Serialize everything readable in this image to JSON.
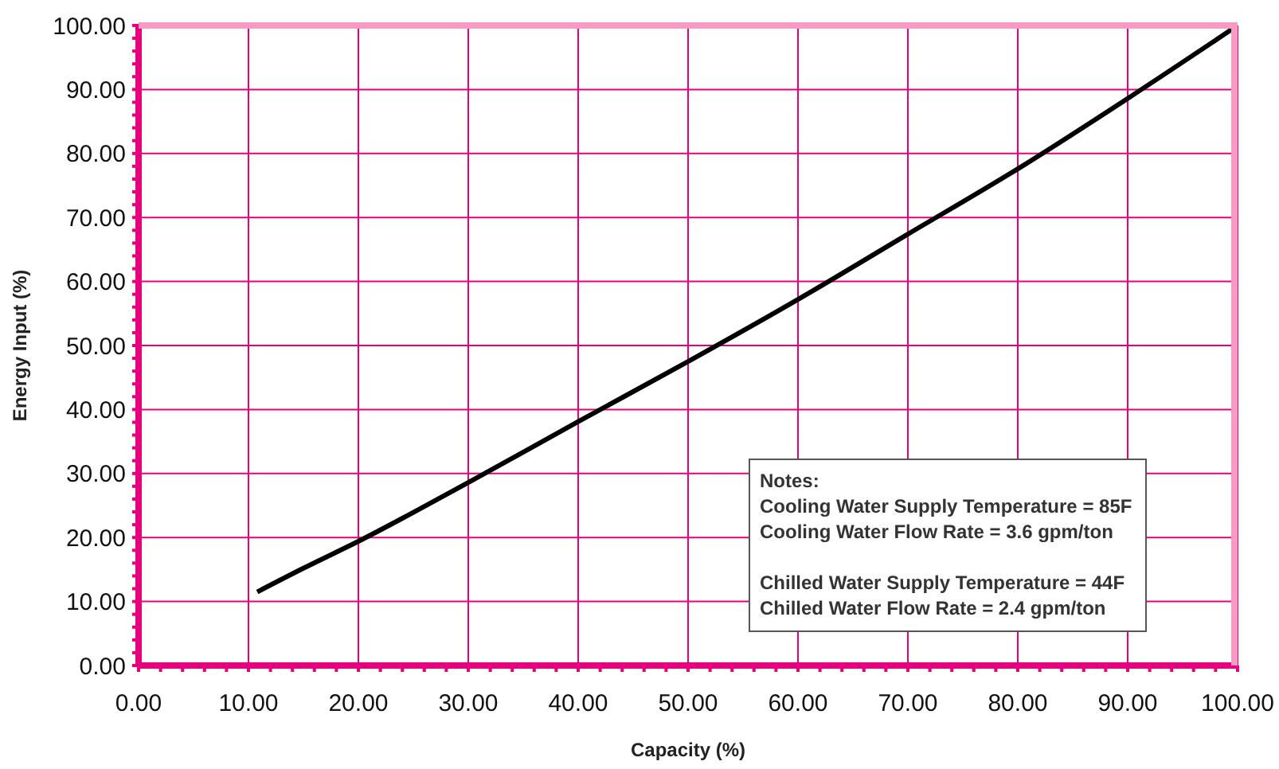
{
  "chart_data": {
    "type": "line",
    "xlabel": "Capacity (%)",
    "ylabel": "Energy Input (%)",
    "x": [
      10.8,
      15,
      20,
      30,
      40,
      50,
      60,
      70,
      80,
      90,
      100
    ],
    "series": [
      {
        "color": "#000000",
        "values": [
          11.5,
          15.2,
          19.4,
          28.6,
          38.1,
          47.5,
          57.2,
          67.4,
          77.6,
          88.6,
          100
        ]
      }
    ],
    "xlim": [
      0,
      100
    ],
    "ylim": [
      0,
      100
    ],
    "xticks": [
      {
        "value": 0,
        "label": "0.00"
      },
      {
        "value": 2,
        "label": null
      },
      {
        "value": 4,
        "label": null
      },
      {
        "value": 6,
        "label": null
      },
      {
        "value": 8,
        "label": null
      },
      {
        "value": 10,
        "label": "10.00"
      },
      {
        "value": 12,
        "label": null
      },
      {
        "value": 14,
        "label": null
      },
      {
        "value": 16,
        "label": null
      },
      {
        "value": 18,
        "label": null
      },
      {
        "value": 20,
        "label": "20.00"
      },
      {
        "value": 22,
        "label": null
      },
      {
        "value": 24,
        "label": null
      },
      {
        "value": 26,
        "label": null
      },
      {
        "value": 28,
        "label": null
      },
      {
        "value": 30,
        "label": "30.00"
      },
      {
        "value": 32,
        "label": null
      },
      {
        "value": 34,
        "label": null
      },
      {
        "value": 36,
        "label": null
      },
      {
        "value": 38,
        "label": null
      },
      {
        "value": 40,
        "label": "40.00"
      },
      {
        "value": 42,
        "label": null
      },
      {
        "value": 44,
        "label": null
      },
      {
        "value": 46,
        "label": null
      },
      {
        "value": 48,
        "label": null
      },
      {
        "value": 50,
        "label": "50.00"
      },
      {
        "value": 52,
        "label": null
      },
      {
        "value": 54,
        "label": null
      },
      {
        "value": 56,
        "label": null
      },
      {
        "value": 58,
        "label": null
      },
      {
        "value": 60,
        "label": "60.00"
      },
      {
        "value": 62,
        "label": null
      },
      {
        "value": 64,
        "label": null
      },
      {
        "value": 66,
        "label": null
      },
      {
        "value": 68,
        "label": null
      },
      {
        "value": 70,
        "label": "70.00"
      },
      {
        "value": 72,
        "label": null
      },
      {
        "value": 74,
        "label": null
      },
      {
        "value": 76,
        "label": null
      },
      {
        "value": 78,
        "label": null
      },
      {
        "value": 80,
        "label": "80.00"
      },
      {
        "value": 82,
        "label": null
      },
      {
        "value": 84,
        "label": null
      },
      {
        "value": 86,
        "label": null
      },
      {
        "value": 88,
        "label": null
      },
      {
        "value": 90,
        "label": "90.00"
      },
      {
        "value": 92,
        "label": null
      },
      {
        "value": 94,
        "label": null
      },
      {
        "value": 96,
        "label": null
      },
      {
        "value": 98,
        "label": null
      },
      {
        "value": 100,
        "label": "100.00"
      }
    ],
    "yticks": [
      {
        "value": 0,
        "label": "0.00"
      },
      {
        "value": 2,
        "label": null
      },
      {
        "value": 4,
        "label": null
      },
      {
        "value": 6,
        "label": null
      },
      {
        "value": 8,
        "label": null
      },
      {
        "value": 10,
        "label": "10.00"
      },
      {
        "value": 12,
        "label": null
      },
      {
        "value": 14,
        "label": null
      },
      {
        "value": 16,
        "label": null
      },
      {
        "value": 18,
        "label": null
      },
      {
        "value": 20,
        "label": "20.00"
      },
      {
        "value": 22,
        "label": null
      },
      {
        "value": 24,
        "label": null
      },
      {
        "value": 26,
        "label": null
      },
      {
        "value": 28,
        "label": null
      },
      {
        "value": 30,
        "label": "30.00"
      },
      {
        "value": 32,
        "label": null
      },
      {
        "value": 34,
        "label": null
      },
      {
        "value": 36,
        "label": null
      },
      {
        "value": 38,
        "label": null
      },
      {
        "value": 40,
        "label": "40.00"
      },
      {
        "value": 42,
        "label": null
      },
      {
        "value": 44,
        "label": null
      },
      {
        "value": 46,
        "label": null
      },
      {
        "value": 48,
        "label": null
      },
      {
        "value": 50,
        "label": "50.00"
      },
      {
        "value": 52,
        "label": null
      },
      {
        "value": 54,
        "label": null
      },
      {
        "value": 56,
        "label": null
      },
      {
        "value": 58,
        "label": null
      },
      {
        "value": 60,
        "label": "60.00"
      },
      {
        "value": 62,
        "label": null
      },
      {
        "value": 64,
        "label": null
      },
      {
        "value": 66,
        "label": null
      },
      {
        "value": 68,
        "label": null
      },
      {
        "value": 70,
        "label": "70.00"
      },
      {
        "value": 72,
        "label": null
      },
      {
        "value": 74,
        "label": null
      },
      {
        "value": 76,
        "label": null
      },
      {
        "value": 78,
        "label": null
      },
      {
        "value": 80,
        "label": "80.00"
      },
      {
        "value": 82,
        "label": null
      },
      {
        "value": 84,
        "label": null
      },
      {
        "value": 86,
        "label": null
      },
      {
        "value": 88,
        "label": null
      },
      {
        "value": 90,
        "label": "90.00"
      },
      {
        "value": 92,
        "label": null
      },
      {
        "value": 94,
        "label": null
      },
      {
        "value": 96,
        "label": null
      },
      {
        "value": 98,
        "label": null
      },
      {
        "value": 100,
        "label": "100.00"
      }
    ],
    "grid": true,
    "annotations": [
      "Notes:\nCooling Water Supply Temperature = 85F\nCooling Water Flow Rate = 3.6 gpm/ton\n\nChilled Water Supply Temperature = 44F\nChilled Water Flow Rate = 2.4 gpm/ton"
    ]
  }
}
